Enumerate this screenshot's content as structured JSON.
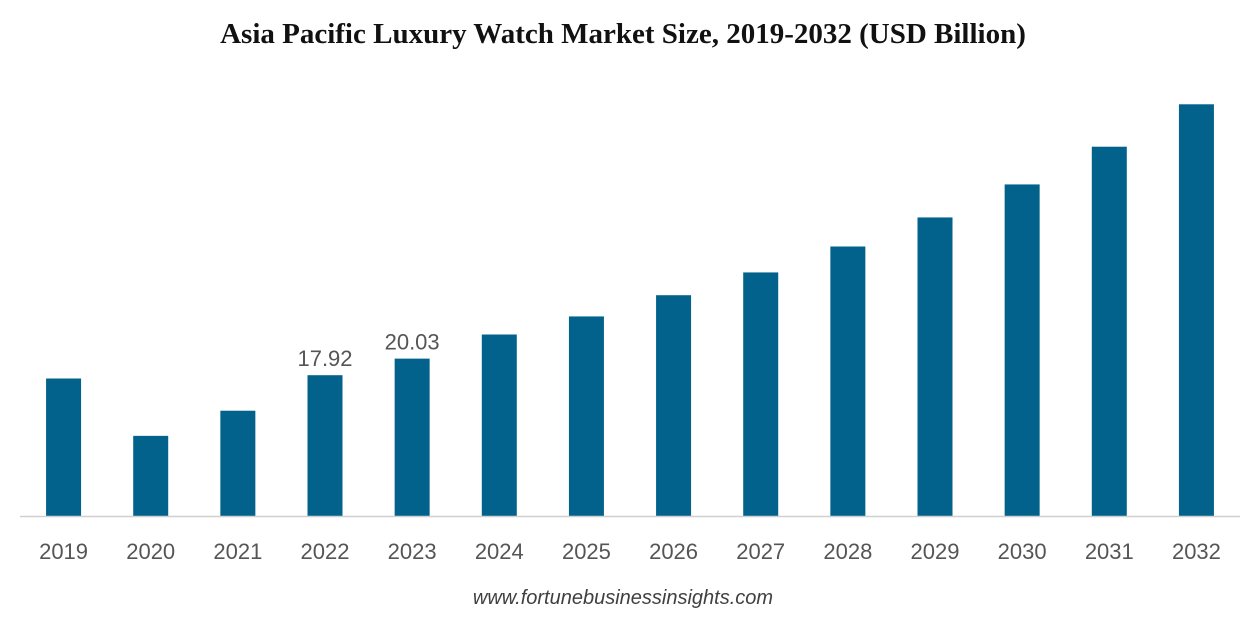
{
  "chart_data": {
    "type": "bar",
    "title": "Asia Pacific Luxury Watch Market Size, 2019-2032 (USD Billion)",
    "categories": [
      "2019",
      "2020",
      "2021",
      "2022",
      "2023",
      "2024",
      "2025",
      "2026",
      "2027",
      "2028",
      "2029",
      "2030",
      "2031",
      "2032"
    ],
    "series": [
      {
        "values": [
          17.5,
          10.2,
          13.4,
          17.92,
          20.03,
          23.1,
          25.4,
          28.1,
          31.0,
          34.3,
          38.0,
          42.2,
          47.0,
          52.4
        ]
      }
    ],
    "data_labels": [
      {
        "category": "2022",
        "text": "17.92"
      },
      {
        "category": "2023",
        "text": "20.03"
      }
    ],
    "xlabel": "",
    "ylabel": "",
    "ylim": [
      0,
      56
    ],
    "grid": false,
    "bar_color": "#02628b"
  },
  "source": "www.fortunebusinessinsights.com"
}
